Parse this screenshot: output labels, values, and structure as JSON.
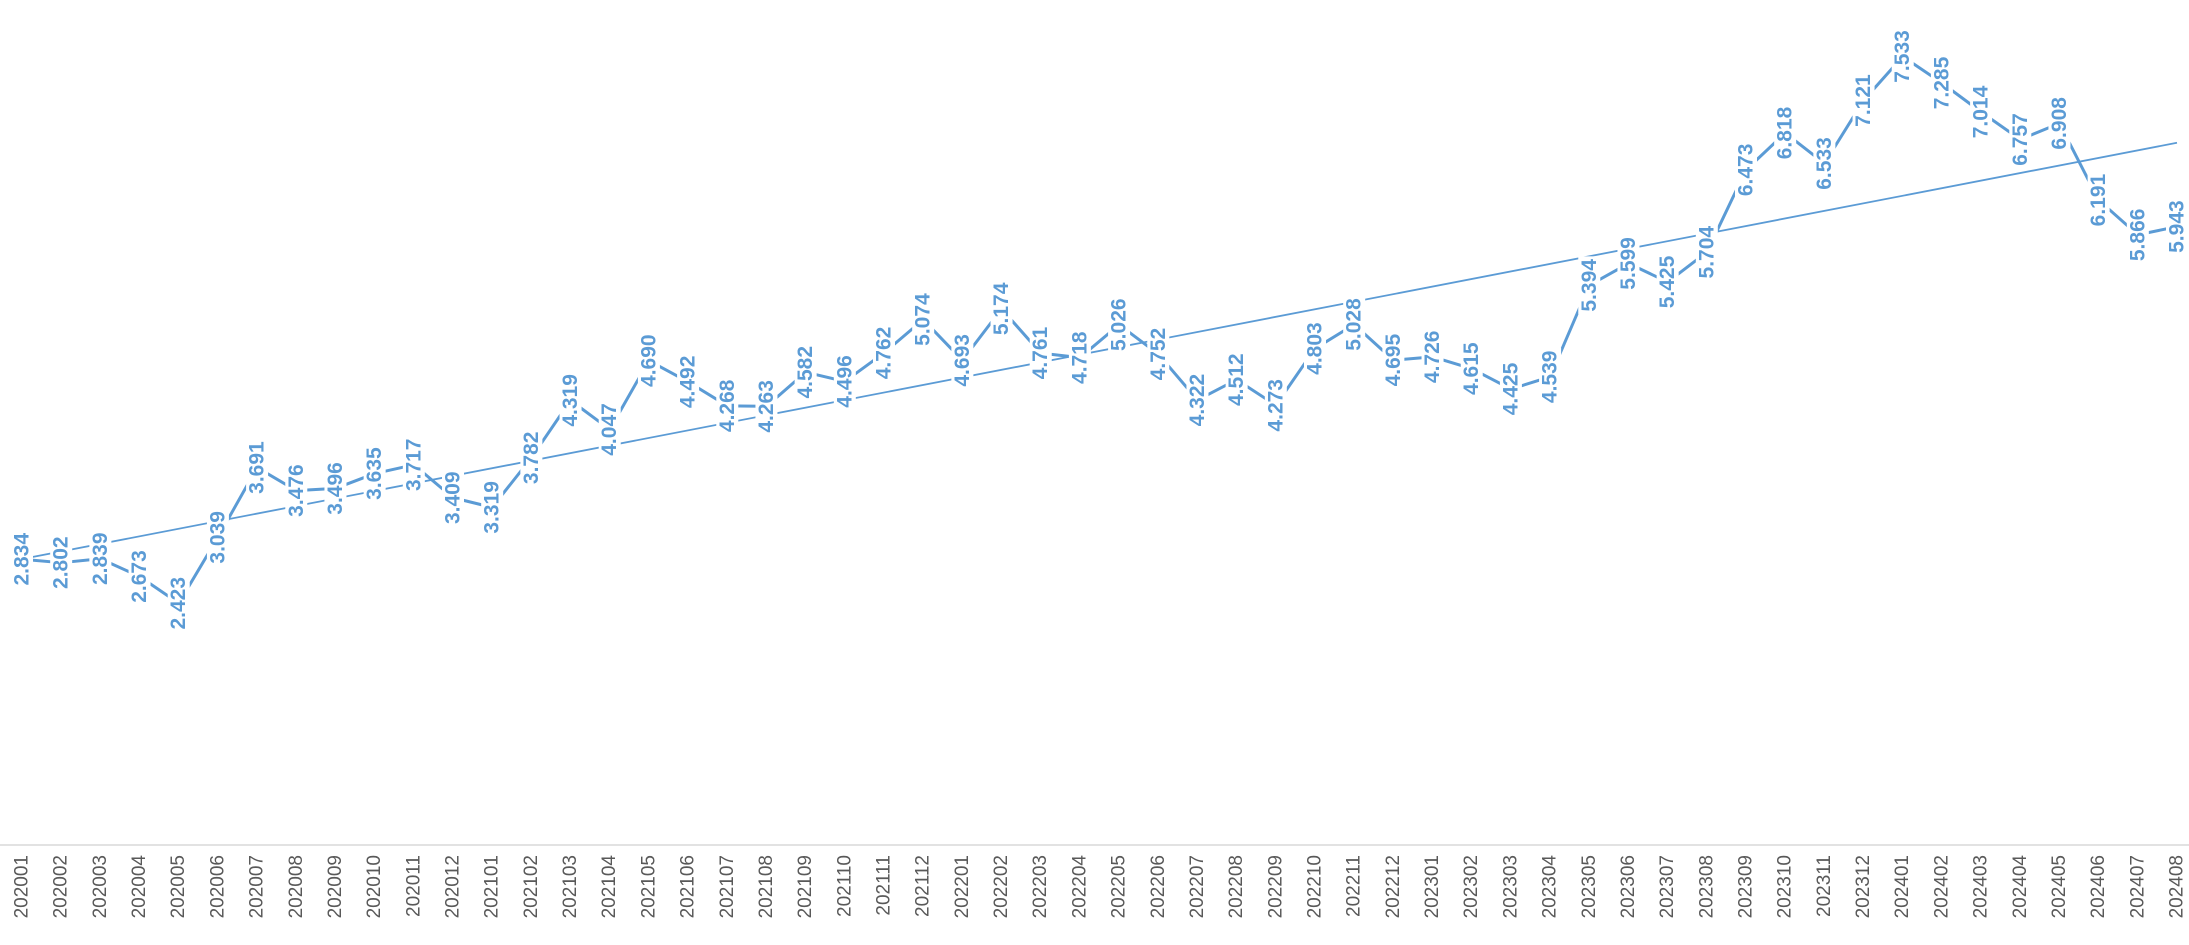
{
  "colors": {
    "series": "#5B9BD5",
    "axis_line": "#D9D9D9",
    "tick_text": "#595959"
  },
  "chart_data": {
    "type": "line",
    "title": "",
    "xlabel": "",
    "ylabel": "",
    "ylim": [
      0,
      8
    ],
    "grid": false,
    "legend": "none",
    "show_data_labels": true,
    "trendline": "linear",
    "categories": [
      "202001",
      "202002",
      "202003",
      "202004",
      "202005",
      "202006",
      "202007",
      "202008",
      "202009",
      "202010",
      "202011",
      "202012",
      "202101",
      "202102",
      "202103",
      "202104",
      "202105",
      "202106",
      "202107",
      "202108",
      "202109",
      "202110",
      "202111",
      "202112",
      "202201",
      "202202",
      "202203",
      "202204",
      "202205",
      "202206",
      "202207",
      "202208",
      "202209",
      "202210",
      "202211",
      "202212",
      "202301",
      "202302",
      "202303",
      "202304",
      "202305",
      "202306",
      "202307",
      "202308",
      "202309",
      "202310",
      "202311",
      "202312",
      "202401",
      "202402",
      "202403",
      "202404",
      "202405",
      "202406",
      "202407",
      "202408"
    ],
    "data_labels": [
      "2.834",
      "2.802",
      "2.839",
      "2.673",
      "2.423",
      "3.039",
      "3.691",
      "3.476",
      "3.496",
      "3.635",
      "3.717",
      "3.409",
      "3.319",
      "3.782",
      "4.319",
      "4.047",
      "4.690",
      "4.492",
      "4.268",
      "4.263",
      "4.582",
      "4.496",
      "4.762",
      "5.074",
      "4.693",
      "5.174",
      "4.761",
      "4.718",
      "5.026",
      "4.752",
      "4.322",
      "4.512",
      "4.273",
      "4.803",
      "5.028",
      "4.695",
      "4.726",
      "4.615",
      "4.425",
      "4.539",
      "5.394",
      "5.599",
      "5.425",
      "5.704",
      "6.473",
      "6.818",
      "6.533",
      "7.121",
      "7.533",
      "7.285",
      "7.014",
      "6.757",
      "6.908",
      "6.191",
      "5.866",
      "5.943"
    ],
    "series": [
      {
        "values": [
          2.834,
          2.802,
          2.839,
          2.673,
          2.423,
          3.039,
          3.691,
          3.476,
          3.496,
          3.635,
          3.717,
          3.409,
          3.319,
          3.782,
          4.319,
          4.047,
          4.69,
          4.492,
          4.268,
          4.263,
          4.582,
          4.496,
          4.762,
          5.074,
          4.693,
          5.174,
          4.761,
          4.718,
          5.026,
          4.752,
          4.322,
          4.512,
          4.273,
          4.803,
          5.028,
          4.695,
          4.726,
          4.615,
          4.425,
          4.539,
          5.394,
          5.599,
          5.425,
          5.704,
          6.473,
          6.818,
          6.533,
          7.121,
          7.533,
          7.285,
          7.014,
          6.757,
          6.908,
          6.191,
          5.866,
          5.943
        ]
      }
    ]
  }
}
